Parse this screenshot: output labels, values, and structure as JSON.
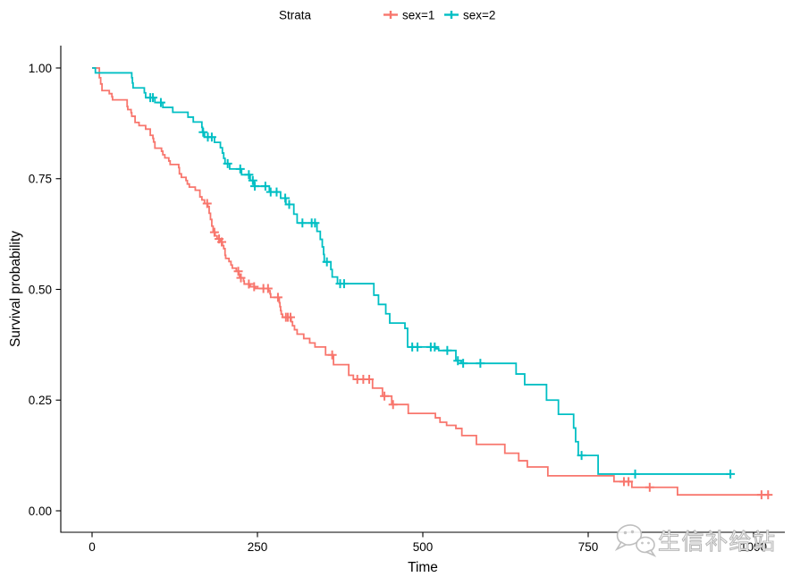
{
  "legend": {
    "title": "Strata"
  },
  "watermark": {
    "text": "生信补给站",
    "icon": "wechat-logo"
  },
  "chart_data": {
    "type": "line",
    "subtype": "kaplan-meier-step",
    "title": "",
    "xlabel": "Time",
    "ylabel": "Survival probability",
    "xlim": [
      -51,
      1073
    ],
    "ylim": [
      -0.05,
      1.05
    ],
    "grid": false,
    "legend_position": "top-center",
    "legend_title": "Strata",
    "x_ticks": [
      {
        "v": 0,
        "label": "0"
      },
      {
        "v": 250,
        "label": "250"
      },
      {
        "v": 500,
        "label": "500"
      },
      {
        "v": 750,
        "label": "750"
      },
      {
        "v": 1000,
        "label": "1000"
      }
    ],
    "y_ticks": [
      {
        "v": 0.0,
        "label": "0.00"
      },
      {
        "v": 0.25,
        "label": "0.25"
      },
      {
        "v": 0.5,
        "label": "0.50"
      },
      {
        "v": 0.75,
        "label": "0.75"
      },
      {
        "v": 1.0,
        "label": "1.00"
      }
    ],
    "series": [
      {
        "name": "sex=1",
        "color": "#F8766D",
        "end_time": 1022,
        "steps": [
          [
            0,
            1.0
          ],
          [
            11,
            0.978
          ],
          [
            13,
            0.964
          ],
          [
            15,
            0.949
          ],
          [
            26,
            0.942
          ],
          [
            30,
            0.935
          ],
          [
            31,
            0.928
          ],
          [
            53,
            0.913
          ],
          [
            54,
            0.906
          ],
          [
            59,
            0.899
          ],
          [
            60,
            0.891
          ],
          [
            65,
            0.877
          ],
          [
            71,
            0.87
          ],
          [
            81,
            0.862
          ],
          [
            88,
            0.848
          ],
          [
            92,
            0.841
          ],
          [
            93,
            0.833
          ],
          [
            95,
            0.819
          ],
          [
            105,
            0.812
          ],
          [
            107,
            0.804
          ],
          [
            110,
            0.797
          ],
          [
            116,
            0.79
          ],
          [
            118,
            0.782
          ],
          [
            131,
            0.775
          ],
          [
            132,
            0.761
          ],
          [
            135,
            0.753
          ],
          [
            142,
            0.746
          ],
          [
            144,
            0.738
          ],
          [
            147,
            0.731
          ],
          [
            156,
            0.724
          ],
          [
            163,
            0.709
          ],
          [
            166,
            0.702
          ],
          [
            170,
            0.694
          ],
          [
            175,
            0.687
          ],
          [
            177,
            0.672
          ],
          [
            179,
            0.658
          ],
          [
            181,
            0.643
          ],
          [
            183,
            0.629
          ],
          [
            186,
            0.621
          ],
          [
            189,
            0.614
          ],
          [
            194,
            0.607
          ],
          [
            197,
            0.599
          ],
          [
            199,
            0.592
          ],
          [
            201,
            0.577
          ],
          [
            202,
            0.57
          ],
          [
            207,
            0.563
          ],
          [
            210,
            0.555
          ],
          [
            212,
            0.548
          ],
          [
            218,
            0.541
          ],
          [
            222,
            0.534
          ],
          [
            223,
            0.526
          ],
          [
            229,
            0.519
          ],
          [
            230,
            0.512
          ],
          [
            239,
            0.506
          ],
          [
            246,
            0.502
          ],
          [
            267,
            0.497
          ],
          [
            269,
            0.49
          ],
          [
            270,
            0.482
          ],
          [
            283,
            0.47
          ],
          [
            284,
            0.461
          ],
          [
            285,
            0.452
          ],
          [
            286,
            0.444
          ],
          [
            288,
            0.437
          ],
          [
            301,
            0.427
          ],
          [
            303,
            0.418
          ],
          [
            306,
            0.409
          ],
          [
            310,
            0.399
          ],
          [
            320,
            0.389
          ],
          [
            329,
            0.379
          ],
          [
            337,
            0.37
          ],
          [
            353,
            0.352
          ],
          [
            365,
            0.33
          ],
          [
            388,
            0.306
          ],
          [
            395,
            0.297
          ],
          [
            424,
            0.277
          ],
          [
            439,
            0.259
          ],
          [
            453,
            0.24
          ],
          [
            478,
            0.22
          ],
          [
            519,
            0.21
          ],
          [
            526,
            0.2
          ],
          [
            536,
            0.193
          ],
          [
            550,
            0.186
          ],
          [
            559,
            0.17
          ],
          [
            581,
            0.15
          ],
          [
            624,
            0.13
          ],
          [
            645,
            0.113
          ],
          [
            658,
            0.099
          ],
          [
            689,
            0.079
          ],
          [
            789,
            0.066
          ],
          [
            816,
            0.053
          ],
          [
            885,
            0.036
          ]
        ],
        "censor_times": [
          174,
          185,
          192,
          196,
          221,
          225,
          237,
          245,
          259,
          266,
          281,
          293,
          296,
          300,
          363,
          401,
          410,
          419,
          442,
          455,
          804,
          811,
          843,
          1012,
          1022
        ]
      },
      {
        "name": "sex=2",
        "color": "#00BFC4",
        "end_time": 965,
        "steps": [
          [
            0,
            1.0
          ],
          [
            5,
            0.989
          ],
          [
            60,
            0.978
          ],
          [
            61,
            0.966
          ],
          [
            62,
            0.955
          ],
          [
            79,
            0.944
          ],
          [
            81,
            0.933
          ],
          [
            95,
            0.922
          ],
          [
            107,
            0.911
          ],
          [
            122,
            0.9
          ],
          [
            145,
            0.889
          ],
          [
            153,
            0.878
          ],
          [
            166,
            0.866
          ],
          [
            167,
            0.855
          ],
          [
            170,
            0.844
          ],
          [
            185,
            0.832
          ],
          [
            194,
            0.82
          ],
          [
            197,
            0.808
          ],
          [
            199,
            0.796
          ],
          [
            201,
            0.784
          ],
          [
            208,
            0.772
          ],
          [
            226,
            0.759
          ],
          [
            239,
            0.746
          ],
          [
            245,
            0.733
          ],
          [
            268,
            0.72
          ],
          [
            285,
            0.706
          ],
          [
            293,
            0.692
          ],
          [
            305,
            0.67
          ],
          [
            310,
            0.65
          ],
          [
            340,
            0.631
          ],
          [
            345,
            0.613
          ],
          [
            348,
            0.596
          ],
          [
            350,
            0.579
          ],
          [
            351,
            0.562
          ],
          [
            361,
            0.545
          ],
          [
            363,
            0.528
          ],
          [
            371,
            0.513
          ],
          [
            426,
            0.487
          ],
          [
            433,
            0.466
          ],
          [
            444,
            0.445
          ],
          [
            450,
            0.424
          ],
          [
            473,
            0.412
          ],
          [
            477,
            0.37
          ],
          [
            520,
            0.366
          ],
          [
            524,
            0.362
          ],
          [
            550,
            0.339
          ],
          [
            558,
            0.333
          ],
          [
            641,
            0.309
          ],
          [
            654,
            0.285
          ],
          [
            687,
            0.25
          ],
          [
            705,
            0.218
          ],
          [
            728,
            0.187
          ],
          [
            731,
            0.156
          ],
          [
            735,
            0.125
          ],
          [
            765,
            0.083
          ]
        ],
        "censor_times": [
          88,
          92,
          104,
          168,
          175,
          181,
          205,
          224,
          237,
          243,
          246,
          262,
          270,
          279,
          292,
          298,
          318,
          332,
          337,
          355,
          375,
          381,
          484,
          492,
          512,
          518,
          537,
          553,
          561,
          587,
          740,
          821,
          965
        ]
      }
    ]
  }
}
